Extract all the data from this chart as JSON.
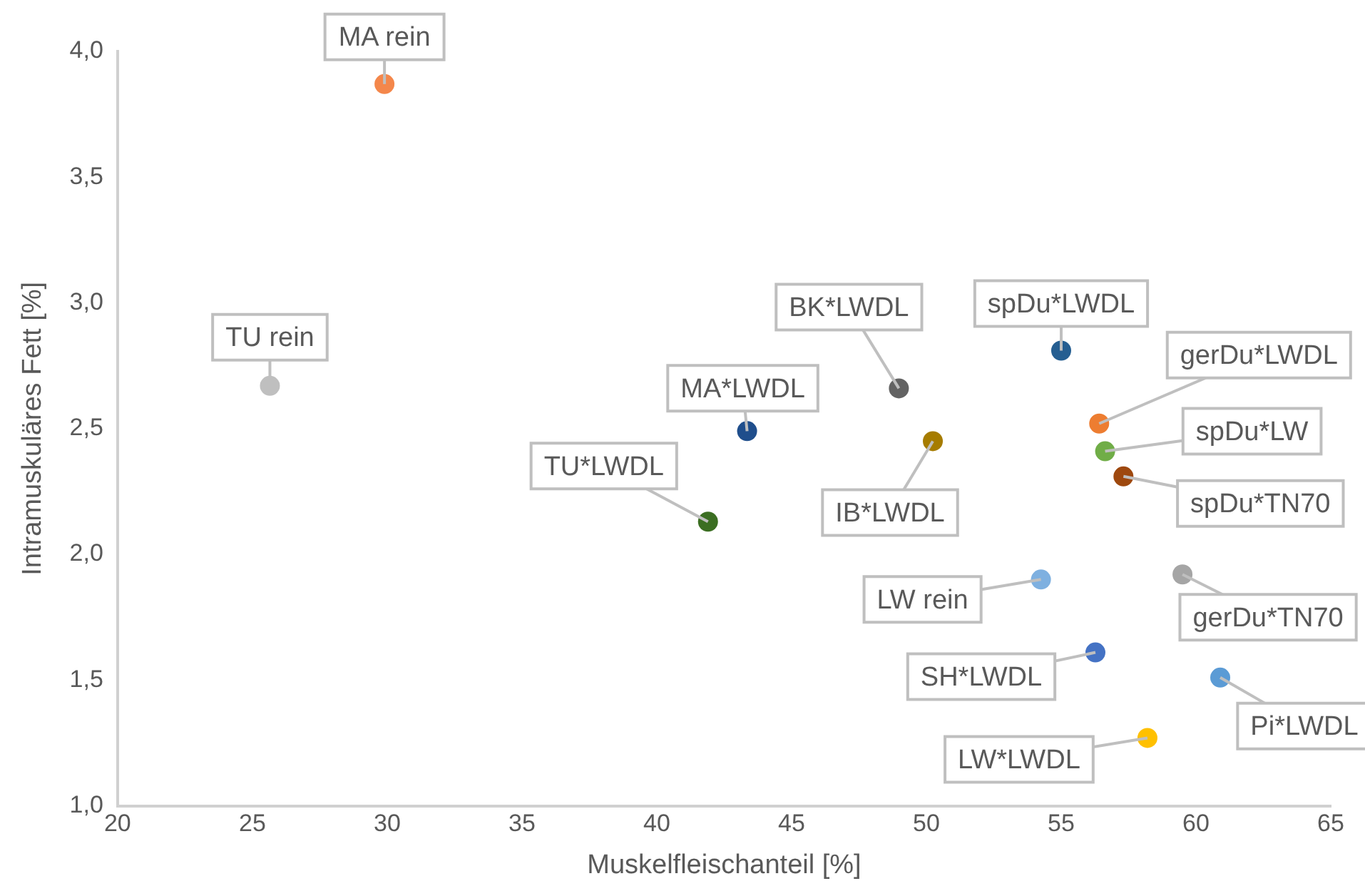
{
  "chart_data": {
    "type": "scatter",
    "xlabel": "Muskelfleischanteil [%]",
    "ylabel": "Intramuskuläres Fett [%]",
    "xlim": [
      20,
      65
    ],
    "xticks": [
      20,
      25,
      30,
      35,
      40,
      45,
      50,
      55,
      60,
      65
    ],
    "ylim": [
      1,
      4
    ],
    "yticks": [
      {
        "value": 1,
        "label": "1,0"
      },
      {
        "value": 1.5,
        "label": "1,5"
      },
      {
        "value": 2,
        "label": "2,0"
      },
      {
        "value": 2.5,
        "label": "2,5"
      },
      {
        "value": 3,
        "label": "3,0"
      },
      {
        "value": 3.5,
        "label": "3,5"
      },
      {
        "value": 4,
        "label": "4,0"
      }
    ],
    "grid": false,
    "legend": false,
    "marker": "circle",
    "series": [
      {
        "name": "MA rein",
        "color": "#f4874b",
        "x": [
          29.9
        ],
        "values": [
          3.87
        ]
      },
      {
        "name": "TU rein",
        "color": "#bfbfbf",
        "x": [
          25.65
        ],
        "values": [
          2.67
        ]
      },
      {
        "name": "TU*LWDL",
        "color": "#3b6e22",
        "x": [
          41.9
        ],
        "values": [
          2.13
        ]
      },
      {
        "name": "MA*LWDL",
        "color": "#1f4e8c",
        "x": [
          43.35
        ],
        "values": [
          2.49
        ]
      },
      {
        "name": "BK*LWDL",
        "color": "#636363",
        "x": [
          48.98
        ],
        "values": [
          2.66
        ]
      },
      {
        "name": "IB*LWDL",
        "color": "#a67c00",
        "x": [
          50.24
        ],
        "values": [
          2.45
        ]
      },
      {
        "name": "spDu*LWDL",
        "color": "#255e91",
        "x": [
          55.0
        ],
        "values": [
          2.81
        ]
      },
      {
        "name": "gerDu*LWDL",
        "color": "#ed7d31",
        "x": [
          56.41
        ],
        "values": [
          2.52
        ]
      },
      {
        "name": "spDu*LW",
        "color": "#70ad47",
        "x": [
          56.63
        ],
        "values": [
          2.41
        ]
      },
      {
        "name": "spDu*TN70",
        "color": "#9e480e",
        "x": [
          57.31
        ],
        "values": [
          2.31
        ]
      },
      {
        "name": "LW rein",
        "color": "#7eb0e0",
        "x": [
          54.25
        ],
        "values": [
          1.9
        ]
      },
      {
        "name": "gerDu*TN70",
        "color": "#a5a5a5",
        "x": [
          59.5
        ],
        "values": [
          1.92
        ]
      },
      {
        "name": "SH*LWDL",
        "color": "#4472c4",
        "x": [
          56.27
        ],
        "values": [
          1.61
        ]
      },
      {
        "name": "Pi*LWDL",
        "color": "#5b9bd5",
        "x": [
          60.9
        ],
        "values": [
          1.51
        ]
      },
      {
        "name": "LW*LWDL",
        "color": "#ffc000",
        "x": [
          58.2
        ],
        "values": [
          1.27
        ]
      }
    ]
  }
}
